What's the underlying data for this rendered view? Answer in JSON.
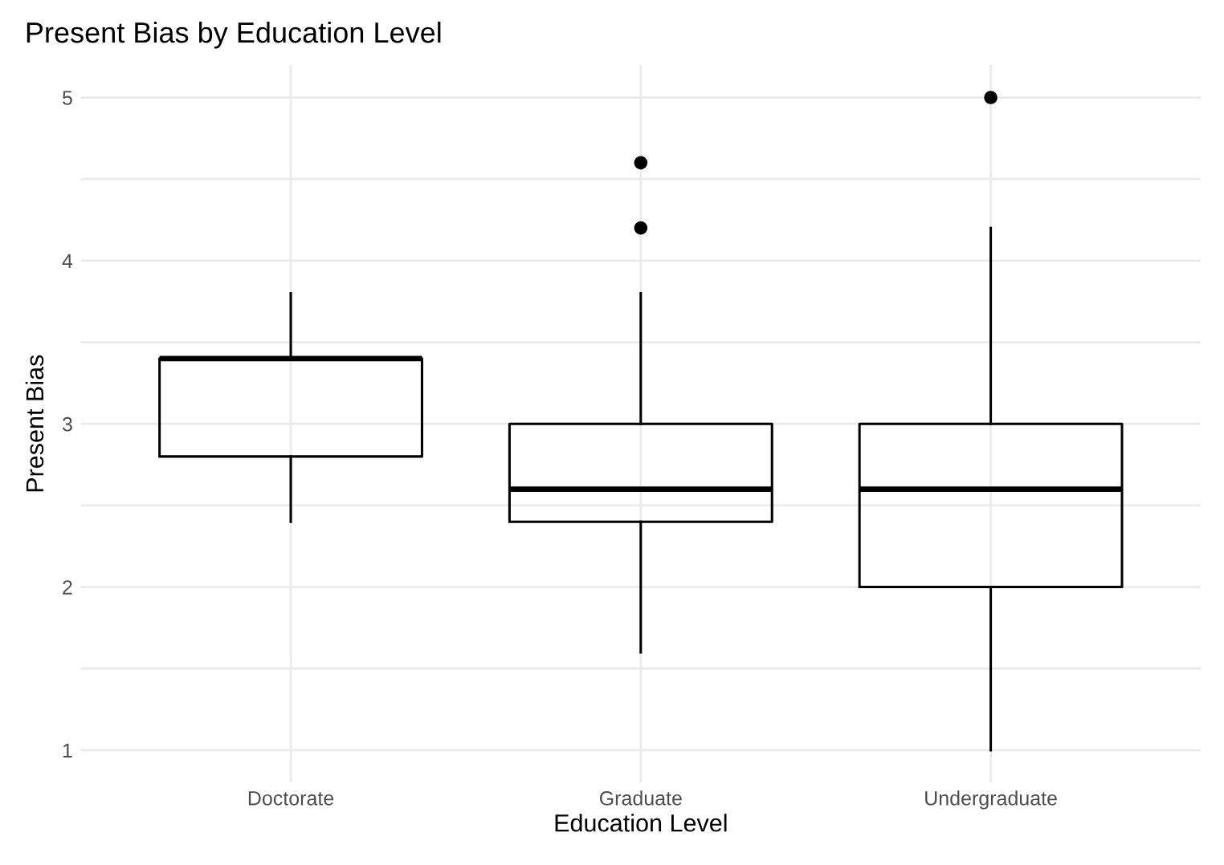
{
  "chart_data": {
    "type": "box",
    "title": "Present Bias by Education Level",
    "xlabel": "Education Level",
    "ylabel": "Present Bias",
    "categories": [
      "Doctorate",
      "Graduate",
      "Undergraduate"
    ],
    "boxes": [
      {
        "low": 2.4,
        "q1": 2.8,
        "median": 3.4,
        "q3": 3.4,
        "high": 3.8
      },
      {
        "low": 1.6,
        "q1": 2.4,
        "median": 2.6,
        "q3": 3.0,
        "high": 3.8,
        "outliers": [
          4.2,
          4.6
        ]
      },
      {
        "low": 1.0,
        "q1": 2.0,
        "median": 2.6,
        "q3": 3.0,
        "high": 4.2,
        "outliers": [
          5.0
        ]
      }
    ],
    "ylim": [
      0.8,
      5.2
    ],
    "yticks": [
      1,
      {
        "value": 1.5,
        "label": null
      },
      2,
      {
        "value": 2.5,
        "label": null
      },
      3,
      {
        "value": 3.5,
        "label": null
      },
      4,
      {
        "value": 4.5,
        "label": null
      },
      5
    ],
    "grid": true,
    "legend": false
  }
}
